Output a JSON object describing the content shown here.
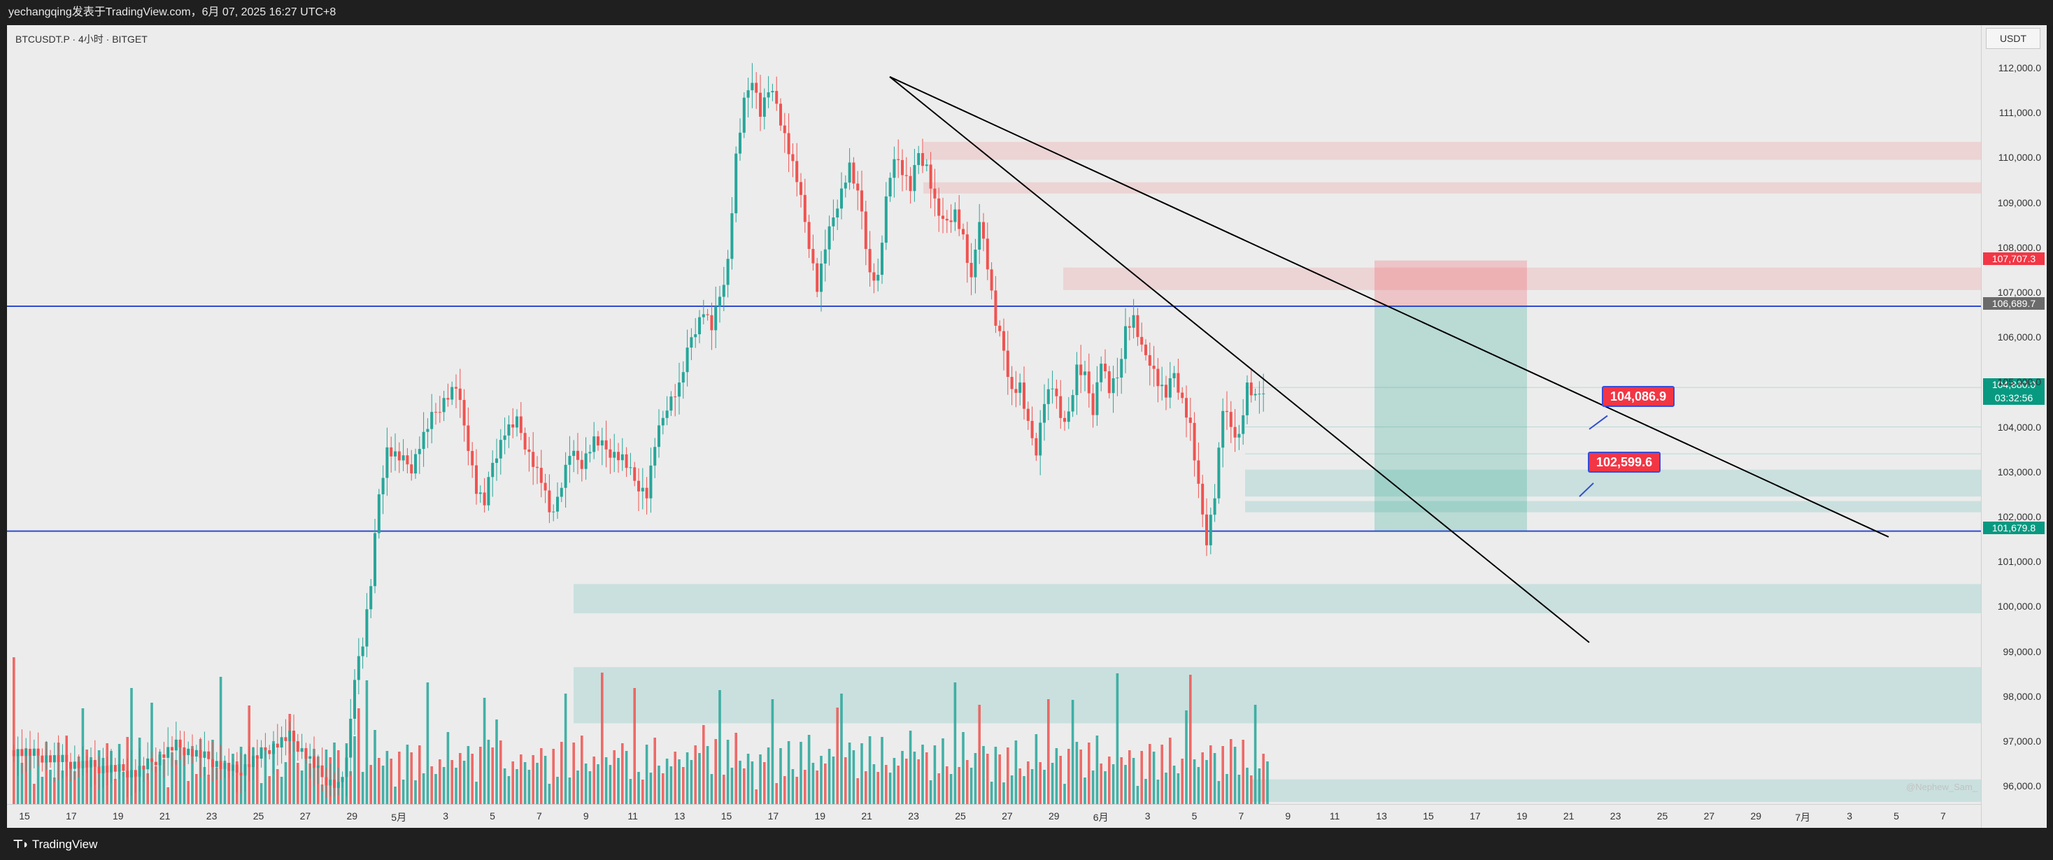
{
  "header": {
    "title": "yechangqing发表于TradingView.com，6月 07, 2025 16:27 UTC+8"
  },
  "chart": {
    "symbol": "BTCUSDT.P · 4小时 · BITGET",
    "unit": "USDT",
    "watermark": "@Nephew_Sam_",
    "price_labels": {
      "upper_red": "107,707.3",
      "blue_upper": "106,689.7",
      "current": "104,880.0",
      "countdown": "03:32:56",
      "blue_lower": "101,679.8"
    },
    "callouts": {
      "c1": "104,086.9",
      "c2": "102,599.6"
    }
  },
  "footer": {
    "logo_text": "TradingView"
  },
  "colors": {
    "up": "#26a69a",
    "down": "#ef5350",
    "blue_line": "#2f4ccf",
    "callout": "#f23645",
    "current": "#089981"
  },
  "chart_data": {
    "type": "candlestick",
    "symbol": "BTCUSDT.P",
    "interval": "4小时",
    "exchange": "BITGET",
    "yticks": [
      "112,000.0",
      "111,000.0",
      "110,000.0",
      "109,000.0",
      "108,000.0",
      "107,000.0",
      "106,000.0",
      "105,000.0",
      "104,000.0",
      "103,000.0",
      "102,000.0",
      "101,000.0",
      "100,000.0",
      "99,000.0",
      "98,000.0",
      "97,000.0",
      "96,000.0"
    ],
    "xticks": [
      "15",
      "17",
      "19",
      "21",
      "23",
      "25",
      "27",
      "29",
      "5月",
      "3",
      "5",
      "7",
      "9",
      "11",
      "13",
      "15",
      "17",
      "19",
      "21",
      "23",
      "25",
      "27",
      "29",
      "6月",
      "3",
      "5",
      "7",
      "9",
      "11",
      "13",
      "15",
      "17",
      "19",
      "21",
      "23",
      "25",
      "27",
      "29",
      "7月",
      "3",
      "5",
      "7"
    ],
    "ylim": [
      95600,
      112950
    ],
    "price_path": [
      [
        0,
        96800
      ],
      [
        15,
        96500
      ],
      [
        30,
        96300
      ],
      [
        40,
        96900
      ],
      [
        48,
        96600
      ],
      [
        55,
        96300
      ],
      [
        62,
        96800
      ],
      [
        68,
        97100
      ],
      [
        72,
        96700
      ],
      [
        76,
        96200
      ],
      [
        80,
        96000
      ],
      [
        82,
        96500
      ],
      [
        84,
        98500
      ],
      [
        86,
        99200
      ],
      [
        88,
        100500
      ],
      [
        90,
        102500
      ],
      [
        92,
        103500
      ],
      [
        95,
        103300
      ],
      [
        98,
        103100
      ],
      [
        100,
        103600
      ],
      [
        103,
        104200
      ],
      [
        106,
        104600
      ],
      [
        109,
        104900
      ],
      [
        112,
        103600
      ],
      [
        114,
        102600
      ],
      [
        116,
        102300
      ],
      [
        118,
        103200
      ],
      [
        121,
        103900
      ],
      [
        124,
        104100
      ],
      [
        127,
        103400
      ],
      [
        130,
        102800
      ],
      [
        132,
        102100
      ],
      [
        134,
        102400
      ],
      [
        137,
        103400
      ],
      [
        140,
        103200
      ],
      [
        143,
        103700
      ],
      [
        146,
        103500
      ],
      [
        150,
        103300
      ],
      [
        153,
        102800
      ],
      [
        156,
        102500
      ],
      [
        158,
        103600
      ],
      [
        161,
        104500
      ],
      [
        164,
        104900
      ],
      [
        167,
        106000
      ],
      [
        170,
        106600
      ],
      [
        172,
        106200
      ],
      [
        174,
        106900
      ],
      [
        176,
        107700
      ],
      [
        178,
        110000
      ],
      [
        180,
        111200
      ],
      [
        182,
        111800
      ],
      [
        184,
        111000
      ],
      [
        186,
        111500
      ],
      [
        188,
        111200
      ],
      [
        190,
        110500
      ],
      [
        193,
        109500
      ],
      [
        196,
        108100
      ],
      [
        198,
        107100
      ],
      [
        200,
        108000
      ],
      [
        203,
        109000
      ],
      [
        206,
        109800
      ],
      [
        209,
        108800
      ],
      [
        211,
        107400
      ],
      [
        213,
        107300
      ],
      [
        215,
        109000
      ],
      [
        217,
        110100
      ],
      [
        219,
        109700
      ],
      [
        221,
        109300
      ],
      [
        223,
        110100
      ],
      [
        225,
        109800
      ],
      [
        227,
        109000
      ],
      [
        229,
        108500
      ],
      [
        232,
        108800
      ],
      [
        234,
        108200
      ],
      [
        236,
        107200
      ],
      [
        238,
        108700
      ],
      [
        240,
        107600
      ],
      [
        242,
        106300
      ],
      [
        244,
        105700
      ],
      [
        246,
        104800
      ],
      [
        248,
        104900
      ],
      [
        250,
        104000
      ],
      [
        252,
        103500
      ],
      [
        254,
        104600
      ],
      [
        256,
        104900
      ],
      [
        258,
        104200
      ],
      [
        260,
        104300
      ],
      [
        262,
        105300
      ],
      [
        264,
        105100
      ],
      [
        266,
        104400
      ],
      [
        268,
        105500
      ],
      [
        270,
        104800
      ],
      [
        272,
        105100
      ],
      [
        274,
        106200
      ],
      [
        276,
        106400
      ],
      [
        278,
        105700
      ],
      [
        280,
        105500
      ],
      [
        282,
        105000
      ],
      [
        284,
        104700
      ],
      [
        286,
        105200
      ],
      [
        288,
        104600
      ],
      [
        290,
        104000
      ],
      [
        292,
        102600
      ],
      [
        294,
        101500
      ],
      [
        296,
        102500
      ],
      [
        298,
        104400
      ],
      [
        300,
        104000
      ],
      [
        302,
        103800
      ],
      [
        304,
        104900
      ],
      [
        306,
        104600
      ],
      [
        308,
        104880
      ]
    ],
    "volume_note": "volume bars drawn at bottom of pane",
    "overlays": {
      "blue_lines": [
        106689.7,
        101679.8
      ],
      "trendlines": "two descending trendlines from May-22 high",
      "position": {
        "entry": 106689.7,
        "stop": 107707.3,
        "target": 101679.8
      }
    }
  }
}
